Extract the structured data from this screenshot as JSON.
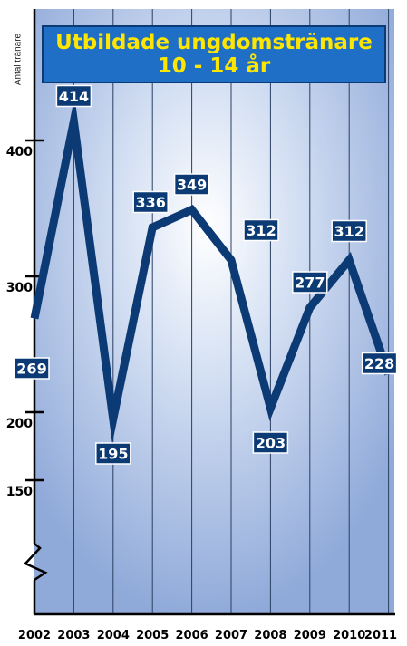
{
  "chart_data": {
    "type": "line",
    "title": "Utbildade ungdomstränare",
    "subtitle": "10 - 14 år",
    "ylabel": "Antal tränare",
    "xlabel": "",
    "categories": [
      "2002",
      "2003",
      "2004",
      "2005",
      "2006",
      "2007",
      "2008",
      "2009",
      "2010",
      "2011"
    ],
    "values": [
      269,
      414,
      195,
      336,
      349,
      312,
      203,
      277,
      312,
      228
    ],
    "y_ticks": [
      150,
      200,
      300,
      400
    ],
    "y_axis_break": true,
    "grid": "vertical",
    "colors": {
      "line": "#0b3a74",
      "label_bg": "#0b3a74",
      "label_text": "#ffffff",
      "title_bg": "#1f6fc6",
      "title_text": "#ffe600",
      "plot_bg": "#a9bfe6"
    }
  }
}
